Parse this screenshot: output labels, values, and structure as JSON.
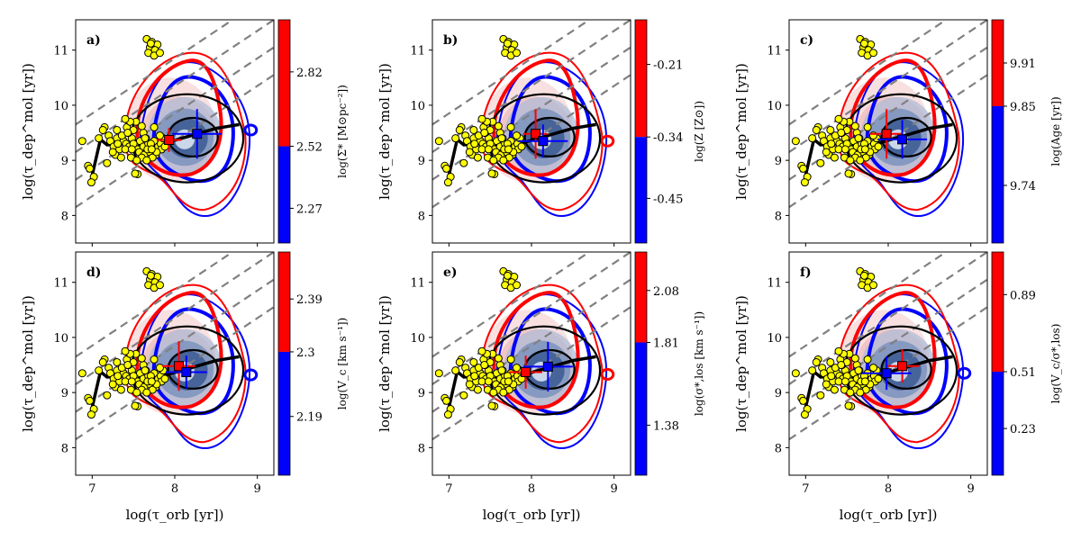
{
  "figure": {
    "xlabel": "log(τ_orb [yr])",
    "ylabel": "log(τ_dep^mol [yr])"
  },
  "colors": {
    "red": "#ff0000",
    "blue": "#0000ff",
    "dark": "#000000",
    "dash": "#808080",
    "dot_fill": "#ffff00",
    "dot_edge": "#000000",
    "shade_red": "#f4c7c7",
    "shade_blue": "#3b5a93"
  },
  "chart_data": [
    {
      "type": "scatter",
      "panel_label": "a)",
      "cbar_label": "log(Σ* [M⊙pc⁻²])",
      "cbar_ticks": [
        "2.82",
        "2.52",
        "2.27"
      ],
      "cbar_tick_values": [
        2.82,
        2.52,
        2.27
      ],
      "cbar_range": [
        2.13,
        3.03
      ],
      "cbar_split": 2.52,
      "xlim": [
        6.8,
        9.2
      ],
      "ylim": [
        7.5,
        11.55
      ],
      "xticks": [
        "7",
        "8",
        "9"
      ],
      "yticks": [
        "8",
        "9",
        "10",
        "11"
      ],
      "red_marker": {
        "x": 7.93,
        "y": 9.37,
        "xerr": 0.15,
        "yerr": 0.22
      },
      "blue_marker": {
        "x": 8.27,
        "y": 9.48,
        "xerr": 0.3,
        "yerr": 0.45
      },
      "island": {
        "x": 8.92,
        "y": 9.55
      }
    },
    {
      "type": "scatter",
      "panel_label": "b)",
      "cbar_label": "log(Z [Z⊙])",
      "cbar_ticks": [
        "-0.21",
        "-0.34",
        "-0.45"
      ],
      "cbar_tick_values": [
        -0.21,
        -0.34,
        -0.45
      ],
      "cbar_range": [
        -0.53,
        -0.13
      ],
      "cbar_split": -0.34,
      "xlim": [
        6.8,
        9.2
      ],
      "ylim": [
        7.5,
        11.55
      ],
      "xticks": [
        "7",
        "8",
        "9"
      ],
      "yticks": [
        "8",
        "9",
        "10",
        "11"
      ],
      "red_marker": {
        "x": 8.05,
        "y": 9.48,
        "xerr": 0.15,
        "yerr": 0.45
      },
      "blue_marker": {
        "x": 8.14,
        "y": 9.35,
        "xerr": 0.3,
        "yerr": 0.3
      },
      "island": {
        "x": 8.92,
        "y": 9.35
      }
    },
    {
      "type": "scatter",
      "panel_label": "c)",
      "cbar_label": "log(Age [yr])",
      "cbar_ticks": [
        "9.91",
        "9.85",
        "9.74"
      ],
      "cbar_tick_values": [
        9.91,
        9.85,
        9.74
      ],
      "cbar_range": [
        9.66,
        9.97
      ],
      "cbar_split": 9.85,
      "xlim": [
        6.8,
        9.2
      ],
      "ylim": [
        7.5,
        11.55
      ],
      "xticks": [
        "7",
        "8",
        "9"
      ],
      "yticks": [
        "8",
        "9",
        "10",
        "11"
      ],
      "red_marker": {
        "x": 7.98,
        "y": 9.48,
        "xerr": 0.2,
        "yerr": 0.45
      },
      "blue_marker": {
        "x": 8.17,
        "y": 9.38,
        "xerr": 0.3,
        "yerr": 0.35
      },
      "island": null
    },
    {
      "type": "scatter",
      "panel_label": "d)",
      "cbar_label": "log(V_c [km s⁻¹])",
      "cbar_ticks": [
        "2.39",
        "2.3",
        "2.19"
      ],
      "cbar_tick_values": [
        2.39,
        2.3,
        2.19
      ],
      "cbar_range": [
        2.09,
        2.47
      ],
      "cbar_split": 2.3,
      "xlim": [
        6.8,
        9.2
      ],
      "ylim": [
        7.5,
        11.55
      ],
      "xticks": [
        "7",
        "8",
        "9"
      ],
      "yticks": [
        "8",
        "9",
        "10",
        "11"
      ],
      "red_marker": {
        "x": 8.05,
        "y": 9.48,
        "xerr": 0.2,
        "yerr": 0.45
      },
      "blue_marker": {
        "x": 8.14,
        "y": 9.37,
        "xerr": 0.25,
        "yerr": 0.3
      },
      "island": {
        "x": 8.92,
        "y": 9.32
      }
    },
    {
      "type": "scatter",
      "panel_label": "e)",
      "cbar_label": "log(σ*,los [km s⁻¹])",
      "cbar_ticks": [
        "2.08",
        "1.81",
        "1.38"
      ],
      "cbar_tick_values": [
        2.08,
        1.81,
        1.38
      ],
      "cbar_range": [
        1.12,
        2.28
      ],
      "cbar_split": 1.81,
      "xlim": [
        6.8,
        9.2
      ],
      "ylim": [
        7.5,
        11.55
      ],
      "xticks": [
        "7",
        "8",
        "9"
      ],
      "yticks": [
        "8",
        "9",
        "10",
        "11"
      ],
      "red_marker": {
        "x": 7.93,
        "y": 9.37,
        "xerr": 0.2,
        "yerr": 0.3
      },
      "blue_marker": {
        "x": 8.2,
        "y": 9.47,
        "xerr": 0.3,
        "yerr": 0.45
      },
      "island": {
        "x": 8.92,
        "y": 9.33
      }
    },
    {
      "type": "scatter",
      "panel_label": "f)",
      "cbar_label": "log(V_c/σ*,los)",
      "cbar_ticks": [
        "0.89",
        "0.51",
        "0.23"
      ],
      "cbar_tick_values": [
        0.89,
        0.51,
        0.23
      ],
      "cbar_range": [
        0.0,
        1.1
      ],
      "cbar_split": 0.51,
      "xlim": [
        6.8,
        9.2
      ],
      "ylim": [
        7.5,
        11.55
      ],
      "xticks": [
        "7",
        "8",
        "9"
      ],
      "yticks": [
        "8",
        "9",
        "10",
        "11"
      ],
      "red_marker": {
        "x": 8.17,
        "y": 9.48,
        "xerr": 0.2,
        "yerr": 0.3
      },
      "blue_marker": {
        "x": 7.98,
        "y": 9.35,
        "xerr": 0.3,
        "yerr": 0.3
      },
      "island": {
        "x": 8.92,
        "y": 9.35
      }
    }
  ],
  "shared": {
    "reference_lines": [
      {
        "type": "diagonal",
        "slope": 1,
        "intercept": 1.35
      },
      {
        "type": "diagonal",
        "slope": 1,
        "intercept": 1.85
      },
      {
        "type": "diagonal",
        "slope": 1,
        "intercept": 2.35
      },
      {
        "type": "diagonal",
        "slope": 1,
        "intercept": 2.85
      }
    ],
    "median_curve": {
      "x": [
        6.98,
        7.1,
        7.18,
        7.35,
        7.6,
        7.9,
        8.2,
        8.5,
        8.78
      ],
      "y": [
        8.6,
        9.38,
        9.28,
        9.3,
        9.25,
        9.32,
        9.45,
        9.58,
        9.65
      ]
    },
    "ellipses": [
      {
        "cx": 8.15,
        "cy": 9.4,
        "rx": 0.68,
        "ry": 0.8
      },
      {
        "cx": 8.22,
        "cy": 9.42,
        "rx": 0.3,
        "ry": 0.35
      }
    ],
    "yellow_points": {
      "x": [
        6.88,
        6.95,
        6.97,
        7.02,
        6.99,
        7.15,
        7.2,
        7.08,
        7.13,
        7.22,
        7.26,
        7.3,
        7.33,
        7.28,
        7.38,
        7.41,
        7.45,
        7.48,
        7.52,
        7.55,
        7.58,
        7.62,
        7.65,
        7.68,
        7.72,
        7.75,
        7.8,
        7.83,
        7.86,
        7.36,
        7.44,
        7.5,
        7.57,
        7.63,
        7.7,
        7.77,
        7.84,
        7.31,
        7.47,
        7.6,
        7.73,
        7.25,
        7.4,
        7.54,
        7.67,
        7.42,
        7.53,
        7.18,
        7.62,
        7.88,
        7.5,
        7.71,
        7.35,
        7.6,
        7.46,
        7.4,
        7.48,
        7.55,
        7.66,
        7.78,
        7.3,
        7.52,
        7.72,
        7.82,
        7.43,
        7.64,
        7.75
      ],
      "y": [
        9.35,
        8.9,
        8.85,
        8.7,
        8.6,
        9.6,
        9.45,
        9.4,
        9.55,
        9.35,
        9.25,
        9.4,
        9.2,
        9.1,
        9.35,
        9.3,
        9.25,
        9.4,
        9.3,
        9.2,
        9.35,
        9.25,
        9.4,
        9.3,
        9.2,
        9.35,
        9.25,
        9.3,
        9.4,
        9.45,
        9.5,
        9.55,
        9.15,
        9.1,
        9.15,
        9.1,
        9.2,
        9.3,
        9.05,
        9.05,
        9.05,
        9.15,
        9.2,
        9.0,
        9.2,
        9.6,
        9.7,
        8.95,
        9.5,
        9.25,
        9.3,
        9.3,
        9.05,
        9.62,
        9.7,
        9.75,
        9.2,
        8.75,
        9.0,
        9.15,
        9.55,
        8.76,
        9.2,
        9.45,
        9.5,
        9.4,
        9.6
      ],
      "cluster_x": [
        7.66,
        7.72,
        7.79,
        7.7,
        7.76,
        7.68,
        7.75,
        7.82,
        7.71
      ],
      "cluster_y": [
        11.2,
        11.15,
        11.1,
        11.05,
        11.0,
        10.95,
        10.9,
        10.95,
        11.12
      ]
    }
  }
}
